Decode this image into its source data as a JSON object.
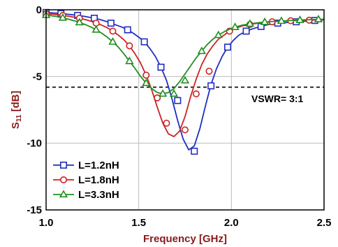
{
  "chart_data": {
    "type": "line",
    "xlabel": "Frequency [GHz]",
    "ylabel_main": "S",
    "ylabel_sub": "11",
    "ylabel_unit": " [dB]",
    "xlim": [
      1.0,
      2.5
    ],
    "ylim": [
      -15,
      0
    ],
    "xticks": [
      1.0,
      1.5,
      2.0,
      2.5
    ],
    "xtick_labels": [
      "1.0",
      "1.5",
      "2.0",
      "2.5"
    ],
    "yticks": [
      0,
      -5,
      -10,
      -15
    ],
    "ytick_labels": [
      "0",
      "-5",
      "-10",
      "-15"
    ],
    "grid": true,
    "legend_position": "bottom-left",
    "reference_line": {
      "y": -5.8,
      "style": "dashed",
      "label": "VSWR= 3:1"
    },
    "series": [
      {
        "name": "L=1.2nH",
        "color": "#1f2fbf",
        "marker": "square",
        "x": [
          1.0,
          1.02,
          1.05,
          1.08,
          1.11,
          1.14,
          1.17,
          1.2,
          1.23,
          1.26,
          1.29,
          1.32,
          1.35,
          1.38,
          1.41,
          1.44,
          1.47,
          1.5,
          1.53,
          1.56,
          1.59,
          1.62,
          1.65,
          1.68,
          1.71,
          1.74,
          1.77,
          1.8,
          1.83,
          1.86,
          1.89,
          1.92,
          1.95,
          1.98,
          2.01,
          2.04,
          2.08,
          2.12,
          2.16,
          2.2,
          2.25,
          2.3,
          2.35,
          2.4,
          2.45,
          2.5
        ],
        "y": [
          -0.2,
          -0.22,
          -0.25,
          -0.28,
          -0.32,
          -0.37,
          -0.42,
          -0.48,
          -0.55,
          -0.63,
          -0.73,
          -0.85,
          -1.0,
          -1.15,
          -1.3,
          -1.5,
          -1.75,
          -2.05,
          -2.4,
          -2.9,
          -3.5,
          -4.3,
          -5.3,
          -6.7,
          -8.3,
          -9.7,
          -10.5,
          -10.2,
          -8.9,
          -7.2,
          -5.6,
          -4.4,
          -3.5,
          -2.8,
          -2.3,
          -1.9,
          -1.6,
          -1.4,
          -1.25,
          -1.1,
          -1.0,
          -0.95,
          -0.9,
          -0.85,
          -0.8,
          -0.75
        ],
        "marker_x": [
          1.0,
          1.08,
          1.17,
          1.26,
          1.35,
          1.44,
          1.53,
          1.62,
          1.71,
          1.8,
          1.89,
          1.98,
          2.08,
          2.16,
          2.25,
          2.35,
          2.45
        ],
        "marker_y": [
          -0.2,
          -0.28,
          -0.42,
          -0.63,
          -1.0,
          -1.5,
          -2.4,
          -4.3,
          -6.8,
          -10.6,
          -5.7,
          -2.8,
          -1.6,
          -1.25,
          -1.0,
          -0.9,
          -0.8
        ]
      },
      {
        "name": "L=1.8nH",
        "color": "#cc2222",
        "marker": "circle",
        "x": [
          1.0,
          1.03,
          1.06,
          1.09,
          1.12,
          1.15,
          1.18,
          1.21,
          1.24,
          1.27,
          1.3,
          1.33,
          1.36,
          1.39,
          1.42,
          1.45,
          1.48,
          1.51,
          1.54,
          1.57,
          1.6,
          1.63,
          1.66,
          1.69,
          1.72,
          1.75,
          1.78,
          1.81,
          1.84,
          1.87,
          1.9,
          1.93,
          1.96,
          1.99,
          2.02,
          2.06,
          2.1,
          2.14,
          2.18,
          2.22,
          2.27,
          2.32,
          2.37,
          2.42,
          2.47,
          2.5
        ],
        "y": [
          -0.3,
          -0.33,
          -0.37,
          -0.42,
          -0.48,
          -0.55,
          -0.63,
          -0.73,
          -0.85,
          -1.0,
          -1.15,
          -1.35,
          -1.6,
          -1.9,
          -2.25,
          -2.7,
          -3.3,
          -4.0,
          -4.9,
          -6.0,
          -7.3,
          -8.5,
          -9.3,
          -9.5,
          -9.1,
          -8.0,
          -6.5,
          -5.2,
          -4.1,
          -3.3,
          -2.7,
          -2.2,
          -1.9,
          -1.6,
          -1.4,
          -1.2,
          -1.1,
          -1.0,
          -0.95,
          -0.9,
          -0.85,
          -0.82,
          -0.8,
          -0.78,
          -0.75,
          -0.73
        ],
        "marker_x": [
          1.0,
          1.09,
          1.18,
          1.27,
          1.36,
          1.45,
          1.54,
          1.6,
          1.65,
          1.75,
          1.81,
          1.88,
          1.99,
          2.1,
          2.22,
          2.32,
          2.42
        ],
        "marker_y": [
          -0.3,
          -0.42,
          -0.63,
          -1.0,
          -1.6,
          -2.7,
          -4.9,
          -6.6,
          -8.5,
          -9.0,
          -6.3,
          -4.6,
          -1.6,
          -1.1,
          -0.9,
          -0.82,
          -0.78
        ]
      },
      {
        "name": "L=3.3nH",
        "color": "#1f8f1f",
        "marker": "triangle",
        "x": [
          1.0,
          1.03,
          1.06,
          1.09,
          1.12,
          1.15,
          1.18,
          1.21,
          1.24,
          1.27,
          1.3,
          1.33,
          1.36,
          1.39,
          1.42,
          1.45,
          1.48,
          1.51,
          1.54,
          1.57,
          1.6,
          1.63,
          1.66,
          1.69,
          1.72,
          1.75,
          1.78,
          1.81,
          1.84,
          1.87,
          1.9,
          1.93,
          1.96,
          1.99,
          2.02,
          2.06,
          2.1,
          2.14,
          2.18,
          2.22,
          2.27,
          2.32,
          2.37,
          2.42,
          2.47,
          2.5
        ],
        "y": [
          -0.4,
          -0.45,
          -0.52,
          -0.6,
          -0.7,
          -0.82,
          -0.95,
          -1.1,
          -1.28,
          -1.5,
          -1.75,
          -2.05,
          -2.4,
          -2.8,
          -3.3,
          -3.85,
          -4.4,
          -5.0,
          -5.5,
          -5.9,
          -6.2,
          -6.3,
          -6.2,
          -5.9,
          -5.4,
          -4.8,
          -4.2,
          -3.6,
          -3.1,
          -2.6,
          -2.2,
          -1.9,
          -1.65,
          -1.45,
          -1.3,
          -1.15,
          -1.05,
          -0.98,
          -0.92,
          -0.88,
          -0.84,
          -0.8,
          -0.77,
          -0.74,
          -0.72,
          -0.7
        ],
        "marker_x": [
          1.0,
          1.09,
          1.18,
          1.27,
          1.36,
          1.45,
          1.54,
          1.63,
          1.69,
          1.75,
          1.84,
          1.93,
          2.02,
          2.1,
          2.18,
          2.27,
          2.37,
          2.47
        ],
        "marker_y": [
          -0.4,
          -0.6,
          -0.95,
          -1.5,
          -2.4,
          -3.85,
          -5.5,
          -6.3,
          -6.3,
          -5.3,
          -3.1,
          -1.9,
          -1.3,
          -1.05,
          -0.92,
          -0.84,
          -0.77,
          -0.72
        ]
      }
    ]
  }
}
